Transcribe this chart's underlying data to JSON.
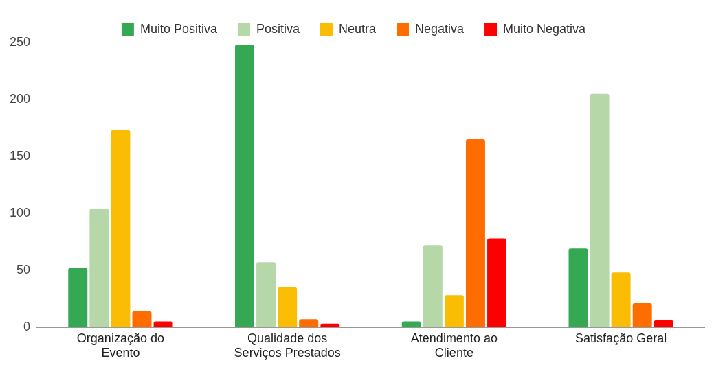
{
  "chart_data": {
    "type": "bar",
    "categories": [
      "Organização do Evento",
      "Qualidade dos Serviços Prestados",
      "Atendimento ao Cliente",
      "Satisfação Geral"
    ],
    "series": [
      {
        "name": "Muito Positiva",
        "color": "#34a853",
        "values": [
          52,
          248,
          5,
          69
        ]
      },
      {
        "name": "Positiva",
        "color": "#b6d7a8",
        "values": [
          104,
          57,
          72,
          205
        ]
      },
      {
        "name": "Neutra",
        "color": "#fbbc04",
        "values": [
          173,
          35,
          28,
          48
        ]
      },
      {
        "name": "Negativa",
        "color": "#ff6d01",
        "values": [
          14,
          7,
          165,
          21
        ]
      },
      {
        "name": "Muito Negativa",
        "color": "#ff0000",
        "values": [
          5,
          3,
          78,
          6
        ]
      }
    ],
    "ylim": [
      0,
      250
    ],
    "yticks": [
      0,
      50,
      100,
      150,
      200,
      250
    ],
    "grid": "y",
    "legend": "top"
  }
}
